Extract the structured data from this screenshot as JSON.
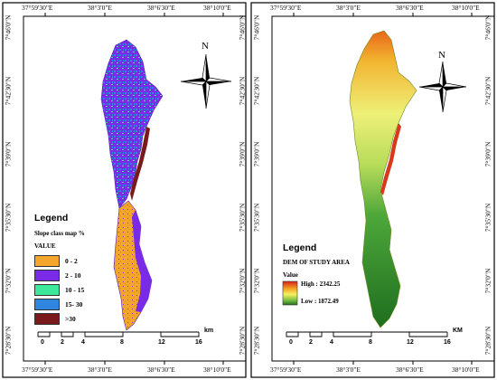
{
  "left_map": {
    "top_ticks": [
      "37°59'30\"E",
      "38°3'0\"E",
      "38°6'30\"E",
      "38°10'0\"E"
    ],
    "bottom_ticks": [
      "37°59'30\"E",
      "38°3'0\"E",
      "38°6'30\"E",
      "38°10'0\"E"
    ],
    "left_ticks": [
      "7°46'0\"N",
      "7°42'30\"N",
      "7°39'0\"N",
      "7°35'30\"N",
      "7°32'0\"N",
      "7°28'30\"N"
    ],
    "right_ticks": [
      "7°46'0\"N",
      "7°42'30\"N",
      "7°39'0\"N",
      "7°35'30\"N",
      "7°32'0\"N",
      "7°28'30\"N"
    ],
    "north": "N",
    "legend": {
      "title": "Legend",
      "subtitle": "Slope class map %",
      "value_label": "VALUE",
      "items": [
        {
          "label": "0 - 2",
          "color": "#f4a52c"
        },
        {
          "label": "2 - 10",
          "color": "#7a2be8"
        },
        {
          "label": "10 - 15",
          "color": "#3ee89a"
        },
        {
          "label": "15- 30",
          "color": "#2f86de"
        },
        {
          "label": ">30",
          "color": "#7b1a1a"
        }
      ]
    },
    "scale": {
      "labels": [
        "0",
        "2",
        "4",
        "8",
        "12",
        "16"
      ],
      "unit": "km"
    }
  },
  "right_map": {
    "top_ticks": [
      "37°59'30\"E",
      "38°3'0\"E",
      "38°6'30\"E",
      "38°10'0\"E"
    ],
    "bottom_ticks": [
      "37°59'30\"E",
      "38°3'0\"E",
      "38°6'30\"E",
      "38°10'0\"E"
    ],
    "left_ticks": [
      "7°46'0\"N",
      "7°42'30\"N",
      "7°39'0\"N",
      "7°35'30\"N",
      "7°32'0\"N",
      "7°28'30\"N"
    ],
    "right_ticks": [
      "7°46'0\"N",
      "7°42'30\"N",
      "7°39'0\"N",
      "7°35'30\"N",
      "7°32'0\"N",
      "7°28'30\"N"
    ],
    "north": "N",
    "legend": {
      "title": "Legend",
      "subtitle": "DEM OF STUDY AREA",
      "value_label": "Value",
      "high": "High : 2342.25",
      "low": "Low : 1872.49"
    },
    "scale": {
      "labels": [
        "0",
        "2",
        "4",
        "8",
        "12",
        "16"
      ],
      "unit": "KM"
    }
  }
}
